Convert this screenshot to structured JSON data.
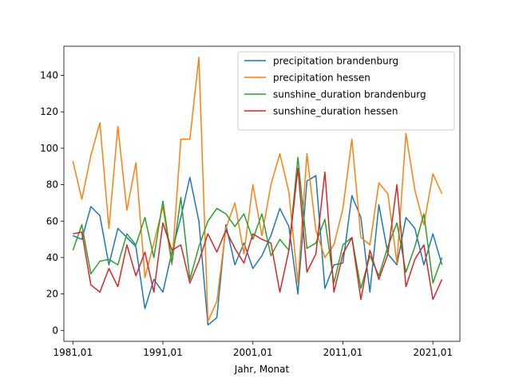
{
  "chart_data": {
    "type": "line",
    "title": "",
    "xlabel": "Jahr, Monat",
    "ylabel": "",
    "xlim": [
      1980.0,
      2024.0
    ],
    "ylim": [
      -6,
      156
    ],
    "x_ticks": [
      {
        "value": 1981,
        "label": "1981,01"
      },
      {
        "value": 1991,
        "label": "1991,01"
      },
      {
        "value": 2001,
        "label": "2001,01"
      },
      {
        "value": 2011,
        "label": "2011,01"
      },
      {
        "value": 2021,
        "label": "2021,01"
      }
    ],
    "y_ticks": [
      0,
      20,
      40,
      60,
      80,
      100,
      120,
      140
    ],
    "grid": false,
    "legend_position": "top-right",
    "x": [
      1981,
      1982,
      1983,
      1984,
      1985,
      1986,
      1987,
      1988,
      1989,
      1990,
      1991,
      1992,
      1993,
      1994,
      1995,
      1996,
      1997,
      1998,
      1999,
      2000,
      2001,
      2002,
      2003,
      2004,
      2005,
      2006,
      2007,
      2008,
      2009,
      2010,
      2011,
      2012,
      2013,
      2014,
      2015,
      2016,
      2017,
      2018,
      2019,
      2020,
      2021,
      2022
    ],
    "series": [
      {
        "name": "precipitation brandenburg",
        "color": "#1f77b4",
        "values": [
          52,
          50,
          68,
          63,
          36,
          56,
          51,
          46,
          12,
          28,
          21,
          43,
          62,
          84,
          60,
          3,
          7,
          58,
          36,
          48,
          34,
          41,
          52,
          67,
          57,
          20,
          82,
          85,
          23,
          36,
          37,
          74,
          62,
          21,
          69,
          42,
          36,
          62,
          56,
          36,
          53,
          36
        ]
      },
      {
        "name": "precipitation hessen",
        "color": "#ff7f0e",
        "values": [
          93,
          72,
          96,
          114,
          56,
          112,
          66,
          92,
          29,
          48,
          68,
          36,
          105,
          105,
          150,
          5,
          16,
          56,
          70,
          42,
          80,
          52,
          80,
          97,
          76,
          26,
          97,
          55,
          40,
          47,
          67,
          105,
          51,
          47,
          81,
          75,
          37,
          108,
          77,
          58,
          86,
          75
        ]
      },
      {
        "name": "sunshine_duration brandenburg",
        "color": "#2ca02c",
        "values": [
          44,
          58,
          31,
          38,
          39,
          36,
          53,
          47,
          62,
          40,
          71,
          37,
          73,
          28,
          46,
          60,
          67,
          64,
          57,
          64,
          50,
          64,
          41,
          50,
          44,
          95,
          45,
          48,
          61,
          26,
          47,
          51,
          23,
          41,
          30,
          46,
          59,
          32,
          46,
          64,
          26,
          40
        ]
      },
      {
        "name": "sunshine_duration hessen",
        "color": "#d62728",
        "values": [
          53,
          54,
          25,
          21,
          34,
          24,
          47,
          30,
          43,
          21,
          59,
          44,
          47,
          26,
          38,
          53,
          43,
          55,
          45,
          37,
          53,
          50,
          48,
          21,
          44,
          89,
          32,
          42,
          87,
          21,
          42,
          51,
          17,
          44,
          28,
          42,
          80,
          24,
          39,
          47,
          17,
          28
        ]
      }
    ]
  }
}
